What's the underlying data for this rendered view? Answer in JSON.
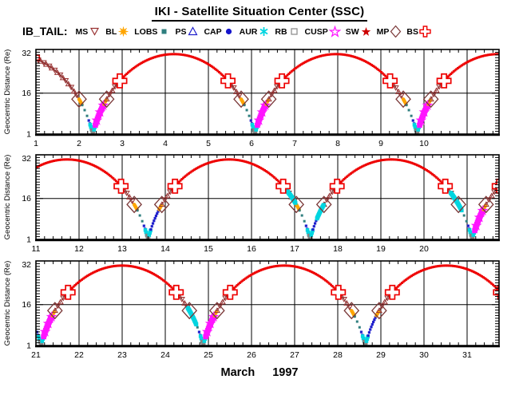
{
  "header": {
    "title": "IKI - Satellite Situation Center (SSC)"
  },
  "legend": {
    "prefix": "IB_TAIL:",
    "items": [
      {
        "label": "MS",
        "symbol": "triangle-down-open",
        "color": "#993333"
      },
      {
        "label": "BL",
        "symbol": "sun-filled",
        "color": "#ffa500"
      },
      {
        "label": "LOBS",
        "symbol": "square-filled",
        "color": "#2f7f7f"
      },
      {
        "label": "PS",
        "symbol": "triangle-up-open",
        "color": "#2020cc"
      },
      {
        "label": "CAP",
        "symbol": "circle-filled",
        "color": "#1414cc"
      },
      {
        "label": "AUR",
        "symbol": "asterisk",
        "color": "#00d5e0"
      },
      {
        "label": "RB",
        "symbol": "square-open",
        "color": "#909090"
      },
      {
        "label": "CUSP",
        "symbol": "star-open",
        "color": "#ff14ff"
      },
      {
        "label": "SW",
        "symbol": "star-filled",
        "color": "#cc0000"
      },
      {
        "label": "MP",
        "symbol": "diamond-open",
        "color": "#7a3838"
      },
      {
        "label": "BS",
        "symbol": "cross-open",
        "color": "#ee0000"
      }
    ]
  },
  "footer": {
    "month": "March",
    "year": "1997"
  },
  "chart_data": {
    "type": "line",
    "title": "IKI - Satellite Situation Center (SSC)",
    "ylabel": "Geocentric Distance (Re)",
    "xlabel": "March 1997",
    "ylim": [
      1,
      32
    ],
    "yticks": [
      1,
      16,
      32
    ],
    "ygrid": [
      16
    ],
    "y_minor_step_re": 1,
    "x_minor_step_days": 0.2,
    "panel_span_days": 10.741,
    "panels": [
      {
        "start_day": 1,
        "ticks": [
          1,
          2,
          3,
          4,
          5,
          6,
          7,
          8,
          9,
          10
        ]
      },
      {
        "start_day": 11,
        "ticks": [
          11,
          12,
          13,
          14,
          15,
          16,
          17,
          18,
          19,
          20
        ]
      },
      {
        "start_day": 21,
        "ticks": [
          21,
          22,
          23,
          24,
          25,
          26,
          27,
          28,
          29,
          30,
          31
        ]
      }
    ],
    "orbit": {
      "period_days": 3.76,
      "first_perigee_day": 2.32,
      "perigee_re": 1.8,
      "apogee_re": 30.3
    },
    "region_colors": {
      "SW": "#ee0000",
      "MS": "#8b3030",
      "MS_triangle": "#993333",
      "BL": "#ffa500",
      "PS": "#2020cc",
      "LOBS": "#2f7f7f",
      "AUR": "#00d5e0",
      "RB": "#848484",
      "CUSP": "#ff14ff"
    },
    "marker_colors": {
      "BS": "#ee0000",
      "MP": "#7a3838"
    },
    "radius_boundaries": {
      "sw_above": 20.5,
      "first_inbound_sw_above": 29,
      "ms_above": 13.8,
      "bl_above": 11.8,
      "ps_above": 4.5,
      "inbound_ps_below": 6.2,
      "aur_above": 2.6,
      "cusp_top": 12,
      "cusp_bottom": 4.2
    },
    "cusp_outbound_perigee_days": [
      2.32,
      6.08,
      9.84,
      21.12,
      24.88
    ],
    "cusp_star_radii": [
      6,
      9,
      11.5
    ],
    "aurora_patch_days": [
      [
        16.82,
        17.02
      ],
      [
        17.52,
        17.68
      ],
      [
        20.62,
        20.88
      ],
      [
        24.52,
        24.72
      ]
    ]
  }
}
